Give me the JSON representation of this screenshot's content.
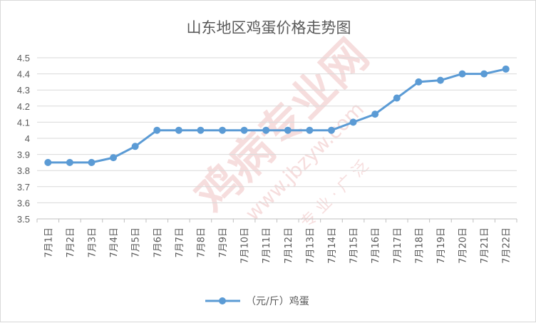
{
  "watermark": {
    "text_main": "鸡病专业网",
    "text_url": "www.jbzyw.com",
    "text_small": "专 业 · 广 泛",
    "color": "#e8a0a0"
  },
  "chart_data": {
    "type": "line",
    "title": "山东地区鸡蛋价格走势图",
    "xlabel": "",
    "ylabel": "",
    "categories": [
      "7月1日",
      "7月2日",
      "7月3日",
      "7月4日",
      "7月5日",
      "7月6日",
      "7月7日",
      "7月8日",
      "7月9日",
      "7月10日",
      "7月11日",
      "7月12日",
      "7月13日",
      "7月14日",
      "7月15日",
      "7月16日",
      "7月17日",
      "7月18日",
      "7月19日",
      "7月20日",
      "7月21日",
      "7月22日"
    ],
    "series": [
      {
        "name": "（元/斤）鸡蛋",
        "color": "#5b9bd5",
        "values": [
          3.85,
          3.85,
          3.85,
          3.88,
          3.95,
          4.05,
          4.05,
          4.05,
          4.05,
          4.05,
          4.05,
          4.05,
          4.05,
          4.05,
          4.1,
          4.15,
          4.25,
          4.35,
          4.36,
          4.4,
          4.4,
          4.43
        ]
      }
    ],
    "ylim": [
      3.5,
      4.5
    ],
    "yticks": [
      "3.5",
      "3.6",
      "3.7",
      "3.8",
      "3.9",
      "4",
      "4.1",
      "4.2",
      "4.3",
      "4.4",
      "4.5"
    ],
    "grid": true,
    "legend": "bottom"
  }
}
